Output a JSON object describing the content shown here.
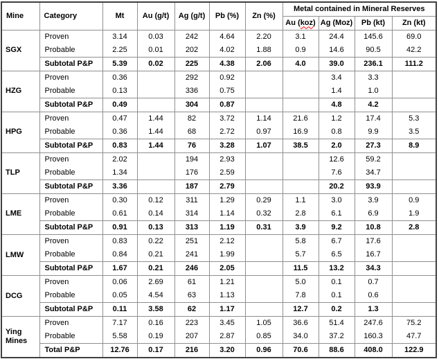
{
  "table": {
    "header": {
      "mine": "Mine",
      "category": "Category",
      "mt": "Mt",
      "au_grade": "Au (g/t)",
      "ag_grade": "Ag (g/t)",
      "pb_grade": "Pb (%)",
      "zn_grade": "Zn (%)",
      "metal_group_title": "Metal contained in Mineral Reserves",
      "au_contained": {
        "pre": "Au (",
        "misspelled_word": "koz",
        "post": ")"
      },
      "ag_contained": "Ag (Moz)",
      "pb_contained": "Pb (kt)",
      "zn_contained": "Zn (kt)"
    },
    "groups": [
      {
        "mine": "SGX",
        "rows": [
          {
            "category": "Proven",
            "is_subtotal": false,
            "values": [
              "3.14",
              "0.03",
              "242",
              "4.64",
              "2.20",
              "3.1",
              "24.4",
              "145.6",
              "69.0"
            ]
          },
          {
            "category": "Probable",
            "is_subtotal": false,
            "values": [
              "2.25",
              "0.01",
              "202",
              "4.02",
              "1.88",
              "0.9",
              "14.6",
              "90.5",
              "42.2"
            ]
          },
          {
            "category": "Subtotal P&P",
            "is_subtotal": true,
            "values": [
              "5.39",
              "0.02",
              "225",
              "4.38",
              "2.06",
              "4.0",
              "39.0",
              "236.1",
              "111.2"
            ]
          }
        ]
      },
      {
        "mine": "HZG",
        "rows": [
          {
            "category": "Proven",
            "is_subtotal": false,
            "values": [
              "0.36",
              "",
              "292",
              "0.92",
              "",
              "",
              "3.4",
              "3.3",
              ""
            ]
          },
          {
            "category": "Probable",
            "is_subtotal": false,
            "values": [
              "0.13",
              "",
              "336",
              "0.75",
              "",
              "",
              "1.4",
              "1.0",
              ""
            ]
          },
          {
            "category": "Subtotal P&P",
            "is_subtotal": true,
            "values": [
              "0.49",
              "",
              "304",
              "0.87",
              "",
              "",
              "4.8",
              "4.2",
              ""
            ]
          }
        ]
      },
      {
        "mine": "HPG",
        "rows": [
          {
            "category": "Proven",
            "is_subtotal": false,
            "values": [
              "0.47",
              "1.44",
              "82",
              "3.72",
              "1.14",
              "21.6",
              "1.2",
              "17.4",
              "5.3"
            ]
          },
          {
            "category": "Probable",
            "is_subtotal": false,
            "values": [
              "0.36",
              "1.44",
              "68",
              "2.72",
              "0.97",
              "16.9",
              "0.8",
              "9.9",
              "3.5"
            ]
          },
          {
            "category": "Subtotal P&P",
            "is_subtotal": true,
            "values": [
              "0.83",
              "1.44",
              "76",
              "3.28",
              "1.07",
              "38.5",
              "2.0",
              "27.3",
              "8.9"
            ]
          }
        ]
      },
      {
        "mine": "TLP",
        "rows": [
          {
            "category": "Proven",
            "is_subtotal": false,
            "values": [
              "2.02",
              "",
              "194",
              "2.93",
              "",
              "",
              "12.6",
              "59.2",
              ""
            ]
          },
          {
            "category": "Probable",
            "is_subtotal": false,
            "values": [
              "1.34",
              "",
              "176",
              "2.59",
              "",
              "",
              "7.6",
              "34.7",
              ""
            ]
          },
          {
            "category": "Subtotal P&P",
            "is_subtotal": true,
            "values": [
              "3.36",
              "",
              "187",
              "2.79",
              "",
              "",
              "20.2",
              "93.9",
              ""
            ]
          }
        ]
      },
      {
        "mine": "LME",
        "rows": [
          {
            "category": "Proven",
            "is_subtotal": false,
            "values": [
              "0.30",
              "0.12",
              "311",
              "1.29",
              "0.29",
              "1.1",
              "3.0",
              "3.9",
              "0.9"
            ]
          },
          {
            "category": "Probable",
            "is_subtotal": false,
            "values": [
              "0.61",
              "0.14",
              "314",
              "1.14",
              "0.32",
              "2.8",
              "6.1",
              "6.9",
              "1.9"
            ]
          },
          {
            "category": "Subtotal P&P",
            "is_subtotal": true,
            "values": [
              "0.91",
              "0.13",
              "313",
              "1.19",
              "0.31",
              "3.9",
              "9.2",
              "10.8",
              "2.8"
            ]
          }
        ]
      },
      {
        "mine": "LMW",
        "rows": [
          {
            "category": "Proven",
            "is_subtotal": false,
            "values": [
              "0.83",
              "0.22",
              "251",
              "2.12",
              "",
              "5.8",
              "6.7",
              "17.6",
              ""
            ]
          },
          {
            "category": "Probable",
            "is_subtotal": false,
            "values": [
              "0.84",
              "0.21",
              "241",
              "1.99",
              "",
              "5.7",
              "6.5",
              "16.7",
              ""
            ]
          },
          {
            "category": "Subtotal P&P",
            "is_subtotal": true,
            "values": [
              "1.67",
              "0.21",
              "246",
              "2.05",
              "",
              "11.5",
              "13.2",
              "34.3",
              ""
            ]
          }
        ]
      },
      {
        "mine": "DCG",
        "rows": [
          {
            "category": "Proven",
            "is_subtotal": false,
            "values": [
              "0.06",
              "2.69",
              "61",
              "1.21",
              "",
              "5.0",
              "0.1",
              "0.7",
              ""
            ]
          },
          {
            "category": "Probable",
            "is_subtotal": false,
            "values": [
              "0.05",
              "4.54",
              "63",
              "1.13",
              "",
              "7.8",
              "0.1",
              "0.6",
              ""
            ]
          },
          {
            "category": "Subtotal P&P",
            "is_subtotal": true,
            "values": [
              "0.11",
              "3.58",
              "62",
              "1.17",
              "",
              "12.7",
              "0.2",
              "1.3",
              ""
            ]
          }
        ]
      },
      {
        "mine": "Ying Mines",
        "rows": [
          {
            "category": "Proven",
            "is_subtotal": false,
            "values": [
              "7.17",
              "0.16",
              "223",
              "3.45",
              "1.05",
              "36.6",
              "51.4",
              "247.6",
              "75.2"
            ]
          },
          {
            "category": "Probable",
            "is_subtotal": false,
            "values": [
              "5.58",
              "0.19",
              "207",
              "2.87",
              "0.85",
              "34.0",
              "37.2",
              "160.3",
              "47.7"
            ]
          },
          {
            "category": "Total P&P",
            "is_subtotal": true,
            "values": [
              "12.76",
              "0.17",
              "216",
              "3.20",
              "0.96",
              "70.6",
              "88.6",
              "408.0",
              "122.9"
            ]
          }
        ]
      }
    ]
  },
  "colors": {
    "background": "#ffffff",
    "text": "#000000",
    "inner_border": "#8f8f8f",
    "outer_border": "#3f3f3f",
    "spellcheck_underline": "#ff0000"
  }
}
